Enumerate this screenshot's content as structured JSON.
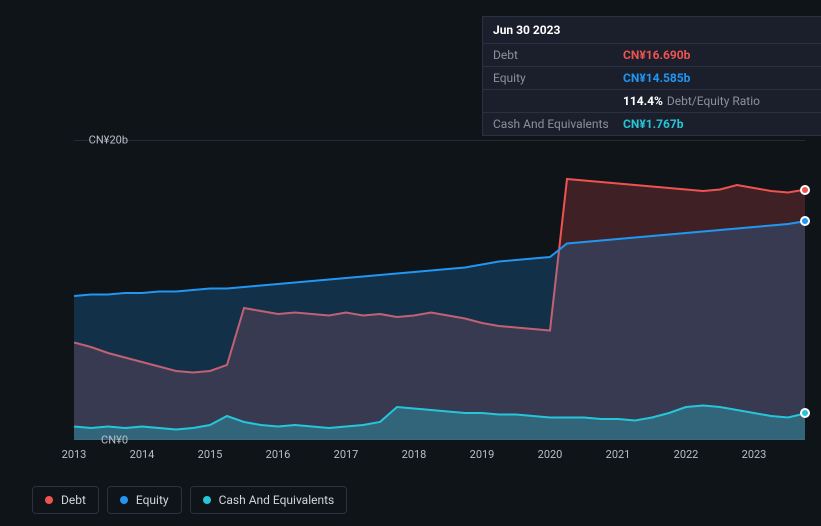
{
  "chart": {
    "type": "area",
    "background_color": "#0f1419",
    "grid_color": "#2a3242",
    "text_color": "#b8bfc8",
    "label_fontsize": 11,
    "y_axis": {
      "min": 0,
      "max": 20,
      "ticks": [
        {
          "value": 0,
          "label": "CN¥0"
        },
        {
          "value": 20,
          "label": "CN¥20b"
        }
      ]
    },
    "x_axis": {
      "ticks": [
        "2013",
        "2014",
        "2015",
        "2016",
        "2017",
        "2018",
        "2019",
        "2020",
        "2021",
        "2022",
        "2023"
      ]
    },
    "series": [
      {
        "name": "Debt",
        "label": "Debt",
        "color": "#ef5350",
        "fill_opacity": 0.22,
        "line_width": 2,
        "values": [
          6.5,
          6.2,
          5.8,
          5.5,
          5.2,
          4.9,
          4.6,
          4.5,
          4.6,
          5.0,
          8.8,
          8.6,
          8.4,
          8.5,
          8.4,
          8.3,
          8.5,
          8.3,
          8.4,
          8.2,
          8.3,
          8.5,
          8.3,
          8.1,
          7.8,
          7.6,
          7.5,
          7.4,
          7.3,
          17.4,
          17.3,
          17.2,
          17.1,
          17.0,
          16.9,
          16.8,
          16.7,
          16.6,
          16.7,
          17.0,
          16.8,
          16.6,
          16.5,
          16.69
        ]
      },
      {
        "name": "Equity",
        "label": "Equity",
        "color": "#2196f3",
        "fill_opacity": 0.22,
        "line_width": 2,
        "values": [
          9.6,
          9.7,
          9.7,
          9.8,
          9.8,
          9.9,
          9.9,
          10.0,
          10.1,
          10.1,
          10.2,
          10.3,
          10.4,
          10.5,
          10.6,
          10.7,
          10.8,
          10.9,
          11.0,
          11.1,
          11.2,
          11.3,
          11.4,
          11.5,
          11.7,
          11.9,
          12.0,
          12.1,
          12.2,
          13.1,
          13.2,
          13.3,
          13.4,
          13.5,
          13.6,
          13.7,
          13.8,
          13.9,
          14.0,
          14.1,
          14.2,
          14.3,
          14.4,
          14.585
        ]
      },
      {
        "name": "Cash And Equivalents",
        "label": "Cash And Equivalents",
        "color": "#26c6da",
        "fill_opacity": 0.3,
        "line_width": 2,
        "values": [
          0.9,
          0.8,
          0.9,
          0.8,
          0.9,
          0.8,
          0.7,
          0.8,
          1.0,
          1.6,
          1.2,
          1.0,
          0.9,
          1.0,
          0.9,
          0.8,
          0.9,
          1.0,
          1.2,
          2.2,
          2.1,
          2.0,
          1.9,
          1.8,
          1.8,
          1.7,
          1.7,
          1.6,
          1.5,
          1.5,
          1.5,
          1.4,
          1.4,
          1.3,
          1.5,
          1.8,
          2.2,
          2.3,
          2.2,
          2.0,
          1.8,
          1.6,
          1.5,
          1.767
        ]
      }
    ],
    "end_markers": [
      {
        "series": "Debt",
        "color": "#ef5350"
      },
      {
        "series": "Equity",
        "color": "#2196f3"
      },
      {
        "series": "Cash And Equivalents",
        "color": "#26c6da"
      }
    ]
  },
  "tooltip": {
    "date": "Jun 30 2023",
    "rows": [
      {
        "label": "Debt",
        "value": "CN¥16.690b",
        "color": "#ef5350"
      },
      {
        "label": "Equity",
        "value": "CN¥14.585b",
        "color": "#2196f3"
      },
      {
        "label": "",
        "value": "114.4%",
        "extra": "Debt/Equity Ratio",
        "color": "#ffffff"
      },
      {
        "label": "Cash And Equivalents",
        "value": "CN¥1.767b",
        "color": "#26c6da"
      }
    ]
  },
  "legend": {
    "items": [
      {
        "label": "Debt",
        "color": "#ef5350"
      },
      {
        "label": "Equity",
        "color": "#2196f3"
      },
      {
        "label": "Cash And Equivalents",
        "color": "#26c6da"
      }
    ]
  }
}
